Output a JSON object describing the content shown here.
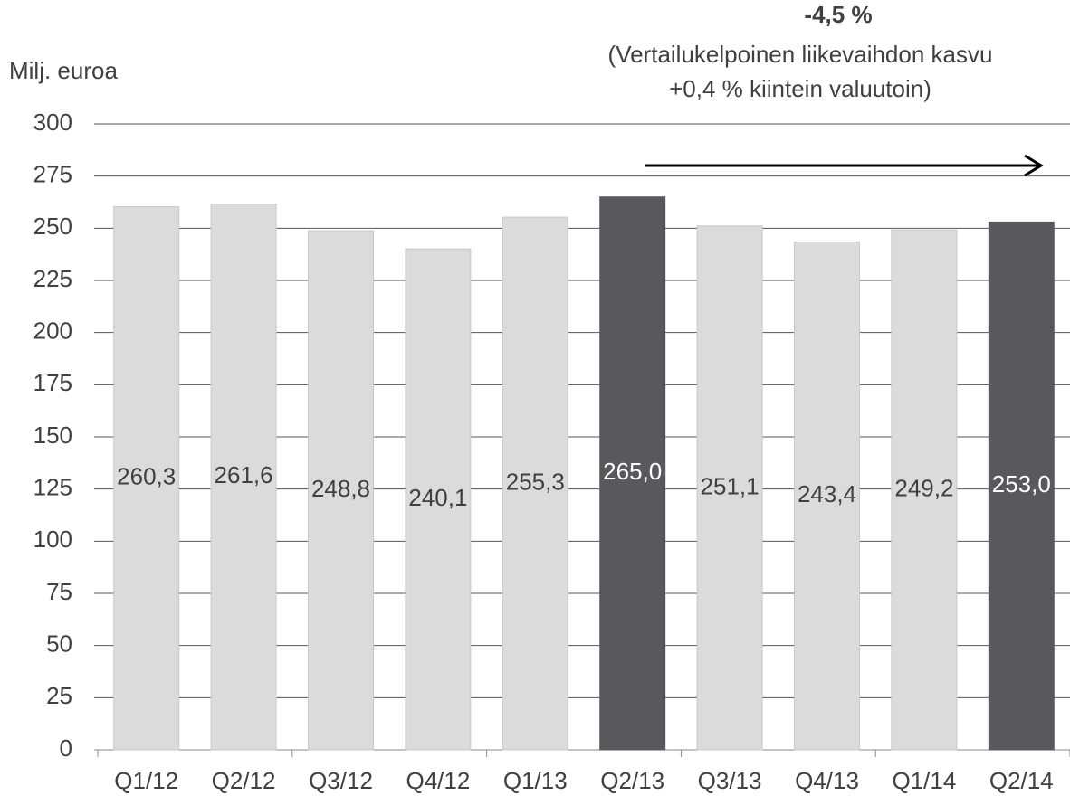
{
  "chart_data": {
    "type": "bar",
    "y_axis_label": "Milj. euroa",
    "annotation_title": "-4,5 %",
    "annotation_lines": [
      "(Vertailukelpoinen liikevaihdon kasvu",
      "+0,4 % kiintein valuutoin)"
    ],
    "categories": [
      "Q1/12",
      "Q2/12",
      "Q3/12",
      "Q4/12",
      "Q1/13",
      "Q2/13",
      "Q3/13",
      "Q4/13",
      "Q1/14",
      "Q2/14"
    ],
    "values": [
      260.3,
      261.6,
      248.8,
      240.1,
      255.3,
      265.0,
      251.1,
      243.4,
      249.2,
      253.0
    ],
    "value_labels": [
      "260,3",
      "261,6",
      "248,8",
      "240,1",
      "255,3",
      "265,0",
      "251,1",
      "243,4",
      "249,2",
      "253,0"
    ],
    "colors": [
      "#dcdbdb",
      "#dcdbdb",
      "#dcdbdb",
      "#dcdbdb",
      "#dcdbdb",
      "#59585d",
      "#dcdbdb",
      "#dcdbdb",
      "#dcdbdb",
      "#59585d"
    ],
    "ylim": [
      0,
      300
    ],
    "yticks": [
      0,
      25,
      50,
      75,
      100,
      125,
      150,
      175,
      200,
      225,
      250,
      275,
      300
    ],
    "grid": true
  }
}
